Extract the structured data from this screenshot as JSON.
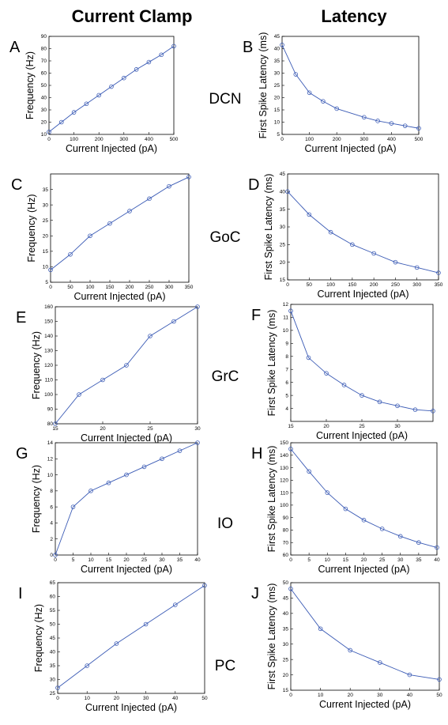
{
  "headers": {
    "current_clamp": "Current Clamp",
    "latency": "Latency"
  },
  "cells": [
    "DCN",
    "GoC",
    "GrC",
    "IO",
    "PC"
  ],
  "colors": {
    "series": "#3b5bb5",
    "axis": "#000000"
  },
  "chart_data": [
    {
      "type": "line",
      "panel": "A",
      "cell": "DCN",
      "xlabel": "Current Injected (pA)",
      "ylabel": "Frequency (Hz)",
      "xlim": [
        0,
        500
      ],
      "ylim": [
        10,
        90
      ],
      "xticks": [
        0,
        100,
        200,
        300,
        400,
        500
      ],
      "yticks": [
        10,
        20,
        30,
        40,
        50,
        60,
        70,
        80,
        90
      ],
      "x": [
        0,
        50,
        100,
        150,
        200,
        250,
        300,
        350,
        400,
        450,
        500
      ],
      "y": [
        12,
        20,
        28,
        35,
        42,
        49,
        56,
        63,
        69,
        75,
        82
      ]
    },
    {
      "type": "line",
      "panel": "B",
      "cell": "DCN",
      "xlabel": "Current Injected (pA)",
      "ylabel": "First Spike Latency (ms)",
      "xlim": [
        0,
        500
      ],
      "ylim": [
        5,
        45
      ],
      "xticks": [
        0,
        100,
        200,
        300,
        400,
        500
      ],
      "yticks": [
        5,
        10,
        15,
        20,
        25,
        30,
        35,
        40,
        45
      ],
      "x": [
        0,
        50,
        100,
        150,
        200,
        300,
        350,
        400,
        450,
        500
      ],
      "y": [
        41.5,
        29.5,
        22,
        18.5,
        15.5,
        12,
        10.5,
        9.5,
        8.5,
        7.5
      ]
    },
    {
      "type": "line",
      "panel": "C",
      "cell": "GoC",
      "xlabel": "Current Injected (pA)",
      "ylabel": "Frequency (Hz)",
      "xlim": [
        0,
        350
      ],
      "ylim": [
        5,
        40
      ],
      "xticks": [
        0,
        50,
        100,
        150,
        200,
        250,
        300,
        350
      ],
      "yticks": [
        5,
        10,
        15,
        20,
        25,
        30,
        35
      ],
      "x": [
        0,
        50,
        100,
        150,
        200,
        250,
        300,
        350
      ],
      "y": [
        9,
        14,
        20,
        24,
        28,
        32,
        36,
        39
      ]
    },
    {
      "type": "line",
      "panel": "D",
      "cell": "GoC",
      "xlabel": "Current Injected (pA)",
      "ylabel": "First Spike Latency (ms)",
      "xlim": [
        0,
        350
      ],
      "ylim": [
        15,
        45
      ],
      "xticks": [
        0,
        50,
        100,
        150,
        200,
        250,
        300,
        350
      ],
      "yticks": [
        15,
        20,
        25,
        30,
        35,
        40,
        45
      ],
      "x": [
        0,
        50,
        100,
        150,
        200,
        250,
        300,
        350
      ],
      "y": [
        40,
        33.5,
        28.5,
        25,
        22.5,
        20,
        18.5,
        17
      ]
    },
    {
      "type": "line",
      "panel": "E",
      "cell": "GrC",
      "xlabel": "Current Injected (pA)",
      "ylabel": "Frequency (Hz)",
      "xlim": [
        15,
        30
      ],
      "ylim": [
        80,
        160
      ],
      "xticks": [
        15,
        20,
        25,
        30
      ],
      "yticks": [
        80,
        90,
        100,
        110,
        120,
        130,
        140,
        150,
        160
      ],
      "x": [
        15,
        17.5,
        20,
        22.5,
        25,
        27.5,
        30
      ],
      "y": [
        80,
        100,
        110,
        120,
        140,
        150,
        160
      ]
    },
    {
      "type": "line",
      "panel": "F",
      "cell": "GrC",
      "xlabel": "Current Injected (pA)",
      "ylabel": "First Spike Latency (ms)",
      "xlim": [
        15,
        35
      ],
      "ylim": [
        3,
        12
      ],
      "xticks": [
        15,
        20,
        25,
        30
      ],
      "yticks": [
        4,
        5,
        6,
        7,
        8,
        9,
        10,
        11,
        12
      ],
      "x": [
        15,
        17.5,
        20,
        22.5,
        25,
        27.5,
        30,
        32.5,
        35
      ],
      "y": [
        11.5,
        7.9,
        6.7,
        5.8,
        5.0,
        4.5,
        4.2,
        3.9,
        3.8
      ]
    },
    {
      "type": "line",
      "panel": "G",
      "cell": "IO",
      "xlabel": "Current Injected (pA)",
      "ylabel": "Frequency (Hz)",
      "xlim": [
        0,
        40
      ],
      "ylim": [
        0,
        14
      ],
      "xticks": [
        0,
        5,
        10,
        15,
        20,
        25,
        30,
        35,
        40
      ],
      "yticks": [
        0,
        2,
        4,
        6,
        8,
        10,
        12,
        14
      ],
      "x": [
        0,
        5,
        10,
        15,
        20,
        25,
        30,
        35,
        40
      ],
      "y": [
        0,
        6,
        8,
        9,
        10,
        11,
        12,
        13,
        14
      ]
    },
    {
      "type": "line",
      "panel": "H",
      "cell": "IO",
      "xlabel": "Current Injected (pA)",
      "ylabel": "First Spike Latency (ms)",
      "xlim": [
        0,
        40
      ],
      "ylim": [
        60,
        150
      ],
      "xticks": [
        0,
        5,
        10,
        15,
        20,
        25,
        30,
        35,
        40
      ],
      "yticks": [
        60,
        70,
        80,
        90,
        100,
        110,
        120,
        130,
        140,
        150
      ],
      "x": [
        0,
        5,
        10,
        15,
        20,
        25,
        30,
        35,
        40
      ],
      "y": [
        145,
        127,
        110,
        97,
        88,
        81,
        75,
        70,
        66
      ]
    },
    {
      "type": "line",
      "panel": "I",
      "cell": "PC",
      "xlabel": "Current Injected (pA)",
      "ylabel": "Frequency (Hz)",
      "xlim": [
        0,
        50
      ],
      "ylim": [
        25,
        65
      ],
      "xticks": [
        0,
        10,
        20,
        30,
        40,
        50
      ],
      "yticks": [
        25,
        30,
        35,
        40,
        45,
        50,
        55,
        60,
        65
      ],
      "x": [
        0,
        10,
        20,
        30,
        40,
        50
      ],
      "y": [
        27,
        35,
        43,
        50,
        57,
        64
      ]
    },
    {
      "type": "line",
      "panel": "J",
      "cell": "PC",
      "xlabel": "Current Injected (pA)",
      "ylabel": "First Spike Latency (ms)",
      "xlim": [
        0,
        50
      ],
      "ylim": [
        15,
        50
      ],
      "xticks": [
        0,
        10,
        20,
        30,
        40,
        50
      ],
      "yticks": [
        15,
        20,
        25,
        30,
        35,
        40,
        45,
        50
      ],
      "x": [
        0,
        10,
        20,
        30,
        40,
        50
      ],
      "y": [
        48,
        35,
        28,
        24,
        20,
        18.5
      ]
    }
  ]
}
